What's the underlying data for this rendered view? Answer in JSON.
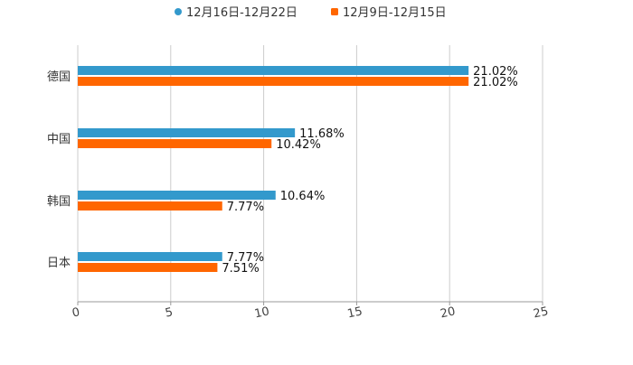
{
  "chart_data": {
    "type": "bar",
    "orientation": "horizontal",
    "categories": [
      "德国",
      "中国",
      "韩国",
      "日本"
    ],
    "series": [
      {
        "name": "12月16日-12月22日",
        "color": "#3399cc",
        "values": [
          21.02,
          11.68,
          10.64,
          7.77
        ],
        "labels": [
          "21.02%",
          "11.68%",
          "10.64%",
          "7.77%"
        ]
      },
      {
        "name": "12月9日-12月15日",
        "color": "#ff6600",
        "values": [
          21.02,
          10.42,
          7.77,
          7.51
        ],
        "labels": [
          "21.02%",
          "10.42%",
          "7.77%",
          "7.51%"
        ]
      }
    ],
    "xlim": [
      0,
      25
    ],
    "xticks": [
      "0",
      "5",
      "10",
      "15",
      "20",
      "25"
    ],
    "grid": true,
    "legend": "top-center",
    "title": "",
    "xlabel": "",
    "ylabel": ""
  }
}
